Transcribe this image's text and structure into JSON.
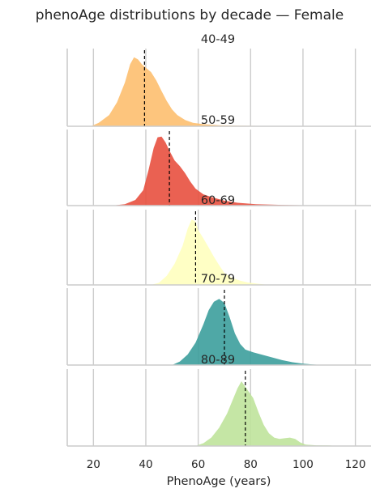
{
  "chart_data": {
    "type": "area",
    "title": "phenoAge distributions by decade — Female",
    "xlabel": "PhenoAge (years)",
    "ylabel": "",
    "xlim": [
      10,
      126
    ],
    "xticks": [
      20,
      40,
      60,
      80,
      100,
      120
    ],
    "grid": true,
    "panels": [
      {
        "label": "40-49",
        "color": "#fdbf6f",
        "median": 39.5,
        "density": [
          [
            19,
            0
          ],
          [
            22,
            0.05
          ],
          [
            26,
            0.16
          ],
          [
            29,
            0.34
          ],
          [
            32,
            0.62
          ],
          [
            34,
            0.88
          ],
          [
            35.5,
            0.98
          ],
          [
            37,
            0.95
          ],
          [
            38.5,
            0.88
          ],
          [
            40,
            0.83
          ],
          [
            42,
            0.77
          ],
          [
            44,
            0.65
          ],
          [
            46,
            0.5
          ],
          [
            48,
            0.36
          ],
          [
            50,
            0.24
          ],
          [
            52,
            0.16
          ],
          [
            55,
            0.09
          ],
          [
            58,
            0.05
          ],
          [
            62,
            0.03
          ],
          [
            68,
            0.015
          ],
          [
            76,
            0.008
          ],
          [
            90,
            0.004
          ],
          [
            105,
            0.002
          ],
          [
            112,
            0
          ]
        ]
      },
      {
        "label": "50-59",
        "color": "#e8503f",
        "median": 49,
        "density": [
          [
            27,
            0
          ],
          [
            32,
            0.02
          ],
          [
            36,
            0.08
          ],
          [
            39,
            0.22
          ],
          [
            41,
            0.5
          ],
          [
            43,
            0.82
          ],
          [
            44.5,
            0.97
          ],
          [
            46,
            0.98
          ],
          [
            47.5,
            0.9
          ],
          [
            49,
            0.78
          ],
          [
            51,
            0.64
          ],
          [
            53,
            0.56
          ],
          [
            55,
            0.46
          ],
          [
            57,
            0.34
          ],
          [
            59,
            0.24
          ],
          [
            62,
            0.16
          ],
          [
            66,
            0.11
          ],
          [
            70,
            0.07
          ],
          [
            75,
            0.04
          ],
          [
            82,
            0.02
          ],
          [
            92,
            0.01
          ],
          [
            105,
            0.004
          ],
          [
            112,
            0
          ]
        ]
      },
      {
        "label": "60-69",
        "color": "#ffffbf",
        "median": 59,
        "density": [
          [
            42,
            0
          ],
          [
            45,
            0.03
          ],
          [
            48,
            0.13
          ],
          [
            51,
            0.3
          ],
          [
            54,
            0.55
          ],
          [
            56,
            0.8
          ],
          [
            57.5,
            0.93
          ],
          [
            59,
            0.9
          ],
          [
            60,
            0.78
          ],
          [
            62,
            0.66
          ],
          [
            64,
            0.53
          ],
          [
            66,
            0.4
          ],
          [
            68,
            0.28
          ],
          [
            70,
            0.17
          ],
          [
            73,
            0.1
          ],
          [
            76,
            0.06
          ],
          [
            79,
            0.035
          ],
          [
            82,
            0.02
          ],
          [
            87,
            0
          ]
        ]
      },
      {
        "label": "70-79",
        "color": "#3c9f9c",
        "median": 70,
        "density": [
          [
            50,
            0
          ],
          [
            53,
            0.05
          ],
          [
            56,
            0.15
          ],
          [
            59,
            0.32
          ],
          [
            62,
            0.58
          ],
          [
            64,
            0.78
          ],
          [
            66,
            0.9
          ],
          [
            68,
            0.94
          ],
          [
            70,
            0.88
          ],
          [
            72,
            0.68
          ],
          [
            74,
            0.45
          ],
          [
            76,
            0.3
          ],
          [
            78,
            0.22
          ],
          [
            81,
            0.18
          ],
          [
            84,
            0.15
          ],
          [
            88,
            0.11
          ],
          [
            92,
            0.07
          ],
          [
            96,
            0.04
          ],
          [
            100,
            0.02
          ],
          [
            104,
            0.008
          ],
          [
            108,
            0
          ]
        ]
      },
      {
        "label": "80-89",
        "color": "#bfe39b",
        "median": 78,
        "density": [
          [
            59,
            0
          ],
          [
            62,
            0.04
          ],
          [
            65,
            0.12
          ],
          [
            68,
            0.26
          ],
          [
            71,
            0.46
          ],
          [
            73,
            0.64
          ],
          [
            75,
            0.82
          ],
          [
            76.5,
            0.92
          ],
          [
            78,
            0.84
          ],
          [
            79.5,
            0.76
          ],
          [
            81,
            0.68
          ],
          [
            83,
            0.48
          ],
          [
            85,
            0.3
          ],
          [
            87,
            0.18
          ],
          [
            89,
            0.12
          ],
          [
            91,
            0.1
          ],
          [
            93,
            0.11
          ],
          [
            95,
            0.12
          ],
          [
            97,
            0.1
          ],
          [
            99,
            0.05
          ],
          [
            101,
            0.02
          ],
          [
            105,
            0.01
          ],
          [
            110,
            0.008
          ],
          [
            114,
            0
          ]
        ]
      }
    ]
  }
}
